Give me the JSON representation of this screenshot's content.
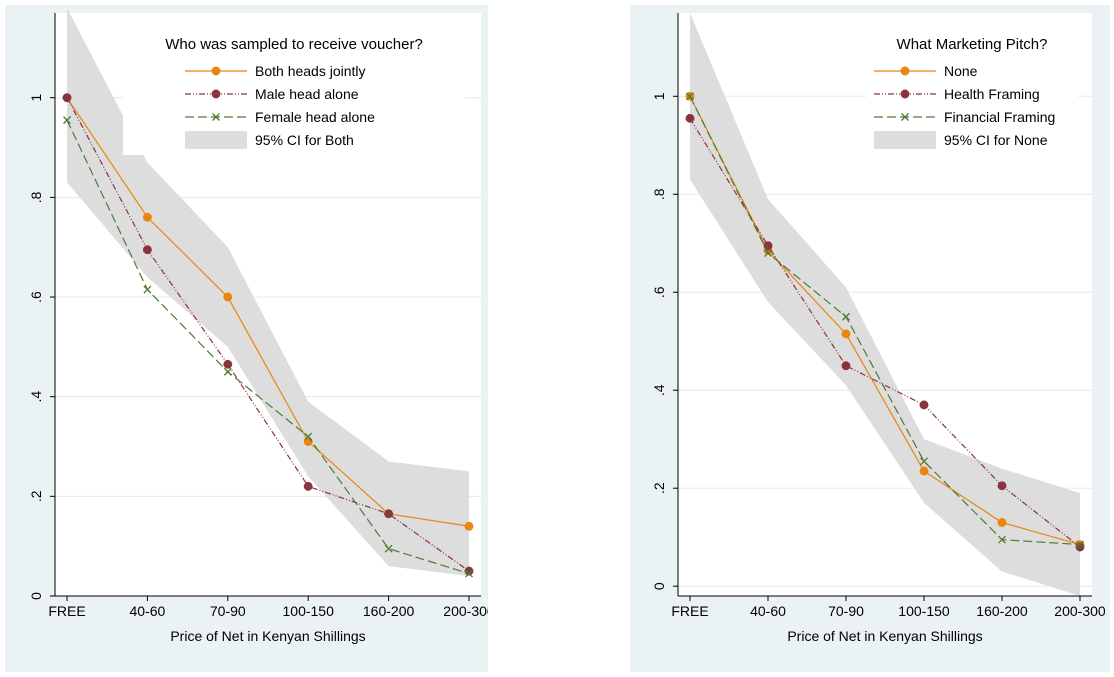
{
  "colors": {
    "background": "#eaf2f3",
    "plot_area": "#ffffff",
    "ci_fill": "#dddddd",
    "orange": "#e8860f",
    "maroon": "#8a3440",
    "green": "#4f7a30",
    "grid": "#e4ebee"
  },
  "chart_data": [
    {
      "type": "line",
      "title": "",
      "xlabel": "Price of Net in Kenyan Shillings",
      "ylabel": "",
      "categories": [
        "FREE",
        "40-60",
        "70-90",
        "100-150",
        "160-200",
        "200-300"
      ],
      "ylim": [
        0,
        1.17
      ],
      "yticks": [
        0,
        0.2,
        0.4,
        0.6,
        0.8,
        1
      ],
      "ytick_labels": [
        "0",
        ".2",
        ".4",
        ".6",
        ".8",
        "1"
      ],
      "grid": true,
      "legend": {
        "title": "Who was sampled to receive voucher?",
        "placement": "top-right",
        "ci_label": "95% CI for Both"
      },
      "ci": {
        "lower": [
          0.83,
          0.64,
          0.5,
          0.24,
          0.06,
          0.04
        ],
        "upper": [
          1.18,
          0.87,
          0.7,
          0.39,
          0.27,
          0.25
        ]
      },
      "series": [
        {
          "name": "Both heads jointly",
          "color": "#e8860f",
          "dash": "",
          "marker": "circle",
          "values": [
            1.0,
            0.76,
            0.6,
            0.31,
            0.165,
            0.14
          ]
        },
        {
          "name": "Male head alone",
          "color": "#8a3440",
          "dash": "6,2,1,2,1,2",
          "marker": "circle",
          "values": [
            1.0,
            0.695,
            0.465,
            0.22,
            0.165,
            0.05
          ]
        },
        {
          "name": "Female head alone",
          "color": "#4f7a30",
          "dash": "9,4",
          "marker": "x",
          "values": [
            0.955,
            0.615,
            0.45,
            0.32,
            0.095,
            0.045
          ]
        }
      ]
    },
    {
      "type": "line",
      "title": "",
      "xlabel": "Price of Net in Kenyan Shillings",
      "ylabel": "",
      "categories": [
        "FREE",
        "40-60",
        "70-90",
        "100-150",
        "160-200",
        "200-300"
      ],
      "ylim": [
        -0.02,
        1.17
      ],
      "yticks": [
        0,
        0.2,
        0.4,
        0.6,
        0.8,
        1
      ],
      "ytick_labels": [
        "0",
        ".2",
        ".4",
        ".6",
        ".8",
        "1"
      ],
      "grid": true,
      "legend": {
        "title": "What Marketing Pitch?",
        "placement": "top-right",
        "ci_label": "95% CI for None"
      },
      "ci": {
        "lower": [
          0.83,
          0.58,
          0.41,
          0.17,
          0.03,
          -0.02
        ],
        "upper": [
          1.17,
          0.79,
          0.61,
          0.3,
          0.24,
          0.19
        ]
      },
      "series": [
        {
          "name": "None",
          "color": "#e8860f",
          "dash": "",
          "marker": "circle",
          "values": [
            1.0,
            0.685,
            0.515,
            0.235,
            0.13,
            0.085
          ]
        },
        {
          "name": "Health Framing",
          "color": "#8a3440",
          "dash": "6,2,1,2,1,2",
          "marker": "circle",
          "values": [
            0.955,
            0.695,
            0.45,
            0.37,
            0.205,
            0.08
          ]
        },
        {
          "name": "Financial Framing",
          "color": "#4f7a30",
          "dash": "9,4",
          "marker": "x",
          "values": [
            1.0,
            0.68,
            0.55,
            0.255,
            0.095,
            0.085
          ]
        }
      ]
    }
  ]
}
